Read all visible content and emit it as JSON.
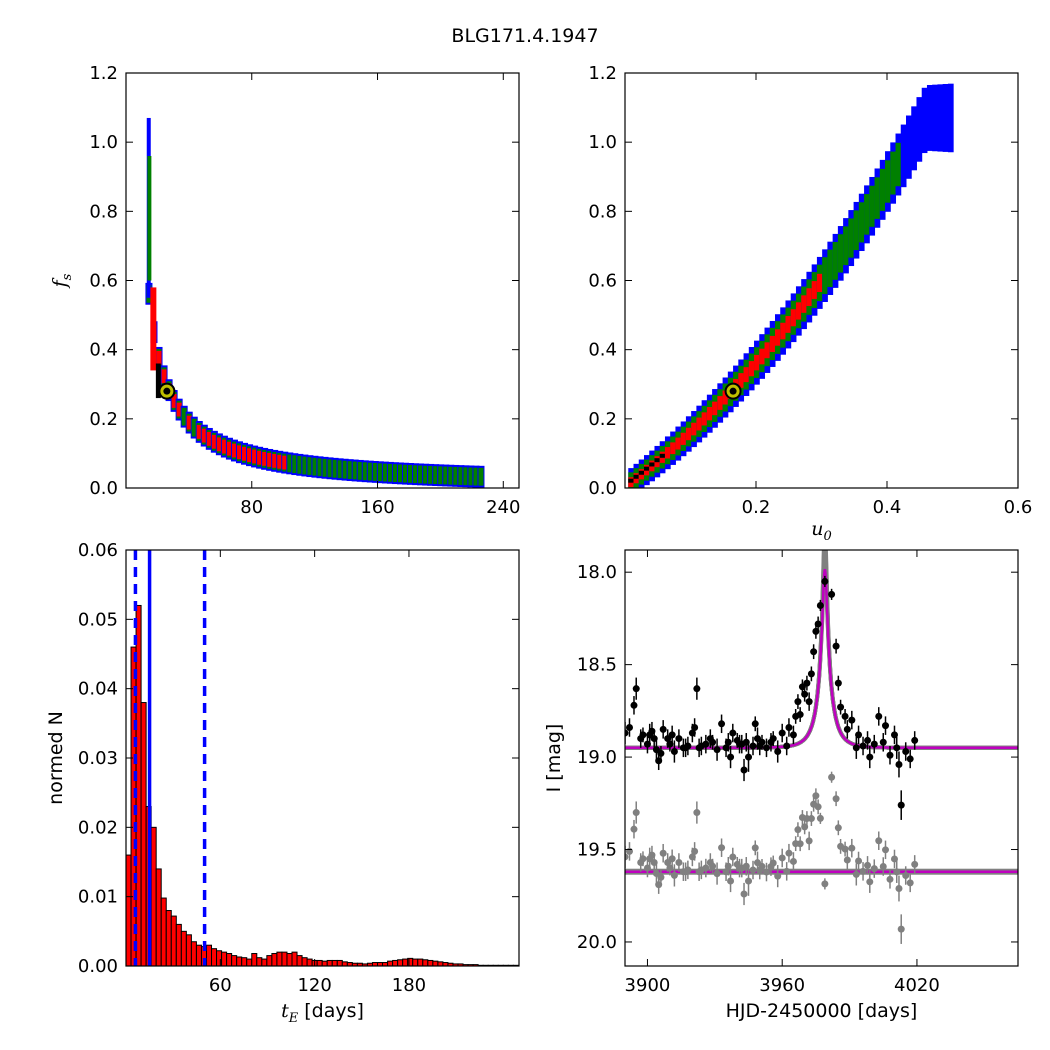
{
  "figure_title": "BLG171.4.1947",
  "colors": {
    "blue": "#0000ff",
    "green": "#008000",
    "red": "#ff0000",
    "black": "#000000",
    "gray": "#808080",
    "magenta": "#bf00bf",
    "marker": "#bfbf00"
  },
  "chart_data": [
    {
      "type": "heatmap",
      "panel": "top-left",
      "xlabel": "",
      "ylabel": "f_s",
      "xlim": [
        0,
        250
      ],
      "ylim": [
        0,
        1.2
      ],
      "xticks": [
        "80",
        "160",
        "240"
      ],
      "yticks": [
        "0.0",
        "0.2",
        "0.4",
        "0.6",
        "0.8",
        "1.0",
        "1.2"
      ],
      "best_fit": {
        "x": 26,
        "y": 0.28
      },
      "description_levels": [
        "blue",
        "green",
        "red",
        "black"
      ]
    },
    {
      "type": "heatmap",
      "panel": "top-right",
      "xlabel": "u_0",
      "ylabel": "",
      "xlim": [
        0,
        0.6
      ],
      "ylim": [
        0,
        1.2
      ],
      "xticks": [
        "0.2",
        "0.4",
        "0.6"
      ],
      "yticks": [
        "0.0",
        "0.2",
        "0.4",
        "0.6",
        "0.8",
        "1.0",
        "1.2"
      ],
      "best_fit": {
        "x": 0.165,
        "y": 0.28
      }
    },
    {
      "type": "bar",
      "panel": "bottom-left",
      "xlabel": "t_E [days]",
      "ylabel": "normed N",
      "xlim": [
        0,
        250
      ],
      "ylim": [
        0,
        0.06
      ],
      "xticks": [
        "60",
        "120",
        "180"
      ],
      "yticks": [
        "0.00",
        "0.01",
        "0.02",
        "0.03",
        "0.04",
        "0.05",
        "0.06"
      ],
      "bin_width": 3.2,
      "bin_start": 0,
      "values": [
        0.016,
        0.046,
        0.052,
        0.038,
        0.023,
        0.02,
        0.014,
        0.0098,
        0.008,
        0.0072,
        0.006,
        0.005,
        0.0045,
        0.0035,
        0.003,
        0.0028,
        0.003,
        0.0025,
        0.0022,
        0.002,
        0.0018,
        0.0015,
        0.0013,
        0.0012,
        0.001,
        0.0018,
        0.0012,
        0.001,
        0.0015,
        0.0018,
        0.002,
        0.002,
        0.0018,
        0.002,
        0.0015,
        0.0012,
        0.001,
        0.0008,
        0.0008,
        0.0007,
        0.0008,
        0.0008,
        0.0008,
        0.0006,
        0.0005,
        0.0004,
        0.0004,
        0.0003,
        0.0004,
        0.0005,
        0.0005,
        0.0005,
        0.0007,
        0.0008,
        0.0009,
        0.001,
        0.0011,
        0.001,
        0.001,
        0.0009,
        0.0008,
        0.0007,
        0.0006,
        0.0005,
        0.0004,
        0.0003,
        0.0003,
        0.0002,
        0.0002,
        0.0002,
        0.0001,
        0.0001,
        0.0001,
        0.0001,
        0.0001,
        0.0001,
        0.0001,
        0.0001
      ],
      "vlines": [
        {
          "x": 6,
          "style": "dashed"
        },
        {
          "x": 15,
          "style": "solid"
        },
        {
          "x": 50,
          "style": "dashed"
        }
      ]
    },
    {
      "type": "line",
      "panel": "bottom-right",
      "xlabel": "HJD-2450000 [days]",
      "ylabel": "I [mag]",
      "xlim": [
        3890,
        4065
      ],
      "ylim": [
        20.13,
        17.88
      ],
      "xticks": [
        "3900",
        "3960",
        "4020"
      ],
      "yticks": [
        "18.0",
        "18.5",
        "19.0",
        "19.5",
        "20.0"
      ],
      "model": {
        "t0": 3979,
        "tE": 6.5,
        "u0": 0.165,
        "fs": 0.28,
        "baseline": 18.95
      },
      "residual_offset": 19.62,
      "data": [
        [
          3890,
          18.87,
          0.06
        ],
        [
          3892,
          18.84,
          0.05
        ],
        [
          3894,
          18.72,
          0.05
        ],
        [
          3895,
          18.63,
          0.06
        ],
        [
          3897,
          18.9,
          0.05
        ],
        [
          3898,
          18.88,
          0.04
        ],
        [
          3900,
          18.93,
          0.05
        ],
        [
          3901,
          18.88,
          0.06
        ],
        [
          3902,
          18.86,
          0.05
        ],
        [
          3903,
          18.9,
          0.05
        ],
        [
          3904,
          18.96,
          0.05
        ],
        [
          3905,
          19.02,
          0.05
        ],
        [
          3906,
          18.98,
          0.04
        ],
        [
          3907,
          18.85,
          0.05
        ],
        [
          3909,
          18.9,
          0.05
        ],
        [
          3910,
          18.93,
          0.04
        ],
        [
          3911,
          18.88,
          0.05
        ],
        [
          3912,
          18.97,
          0.06
        ],
        [
          3914,
          18.9,
          0.05
        ],
        [
          3916,
          18.95,
          0.05
        ],
        [
          3917,
          18.95,
          0.05
        ],
        [
          3918,
          18.94,
          0.05
        ],
        [
          3920,
          18.87,
          0.05
        ],
        [
          3921,
          18.84,
          0.05
        ],
        [
          3922,
          18.63,
          0.06
        ],
        [
          3923,
          18.95,
          0.05
        ],
        [
          3924,
          18.94,
          0.05
        ],
        [
          3926,
          18.93,
          0.05
        ],
        [
          3928,
          18.9,
          0.05
        ],
        [
          3929,
          18.92,
          0.04
        ],
        [
          3931,
          18.96,
          0.06
        ],
        [
          3933,
          18.82,
          0.05
        ],
        [
          3935,
          18.95,
          0.05
        ],
        [
          3936,
          18.92,
          0.05
        ],
        [
          3937,
          19.0,
          0.06
        ],
        [
          3938,
          18.87,
          0.05
        ],
        [
          3940,
          18.91,
          0.04
        ],
        [
          3941,
          18.93,
          0.05
        ],
        [
          3942,
          18.93,
          0.05
        ],
        [
          3943,
          19.07,
          0.06
        ],
        [
          3944,
          18.92,
          0.05
        ],
        [
          3945,
          19.0,
          0.08
        ],
        [
          3947,
          18.94,
          0.05
        ],
        [
          3948,
          18.82,
          0.04
        ],
        [
          3949,
          18.9,
          0.06
        ],
        [
          3950,
          18.94,
          0.05
        ],
        [
          3951,
          18.92,
          0.04
        ],
        [
          3953,
          18.95,
          0.05
        ],
        [
          3955,
          18.92,
          0.05
        ],
        [
          3956,
          18.9,
          0.04
        ],
        [
          3958,
          18.97,
          0.06
        ],
        [
          3960,
          18.87,
          0.05
        ],
        [
          3962,
          18.94,
          0.05
        ],
        [
          3963,
          18.84,
          0.05
        ],
        [
          3965,
          18.88,
          0.05
        ],
        [
          3966,
          18.78,
          0.04
        ],
        [
          3967,
          18.7,
          0.04
        ],
        [
          3968,
          18.77,
          0.04
        ],
        [
          3969,
          18.62,
          0.04
        ],
        [
          3970,
          18.66,
          0.04
        ],
        [
          3971,
          18.6,
          0.04
        ],
        [
          3972,
          18.7,
          0.05
        ],
        [
          3973,
          18.55,
          0.04
        ],
        [
          3974,
          18.43,
          0.04
        ],
        [
          3975,
          18.32,
          0.04
        ],
        [
          3976,
          18.28,
          0.04
        ],
        [
          3977,
          18.18,
          0.03
        ],
        [
          3979,
          18.05,
          0.03
        ],
        [
          3982,
          18.12,
          0.03
        ],
        [
          3984,
          18.4,
          0.04
        ],
        [
          3985,
          18.6,
          0.04
        ],
        [
          3986,
          18.73,
          0.04
        ],
        [
          3988,
          18.78,
          0.04
        ],
        [
          3989,
          18.85,
          0.05
        ],
        [
          3991,
          18.8,
          0.05
        ],
        [
          3993,
          18.95,
          0.06
        ],
        [
          3994,
          18.88,
          0.05
        ],
        [
          3996,
          18.94,
          0.05
        ],
        [
          3998,
          18.91,
          0.05
        ],
        [
          3999,
          19.0,
          0.06
        ],
        [
          4001,
          18.93,
          0.05
        ],
        [
          4003,
          18.78,
          0.05
        ],
        [
          4005,
          18.92,
          0.05
        ],
        [
          4006,
          18.83,
          0.05
        ],
        [
          4008,
          18.99,
          0.05
        ],
        [
          4010,
          18.88,
          0.05
        ],
        [
          4011,
          18.95,
          0.06
        ],
        [
          4012,
          19.04,
          0.07
        ],
        [
          4013,
          19.26,
          0.08
        ],
        [
          4015,
          18.97,
          0.05
        ],
        [
          4017,
          19.01,
          0.05
        ],
        [
          4019,
          18.91,
          0.05
        ]
      ]
    }
  ]
}
